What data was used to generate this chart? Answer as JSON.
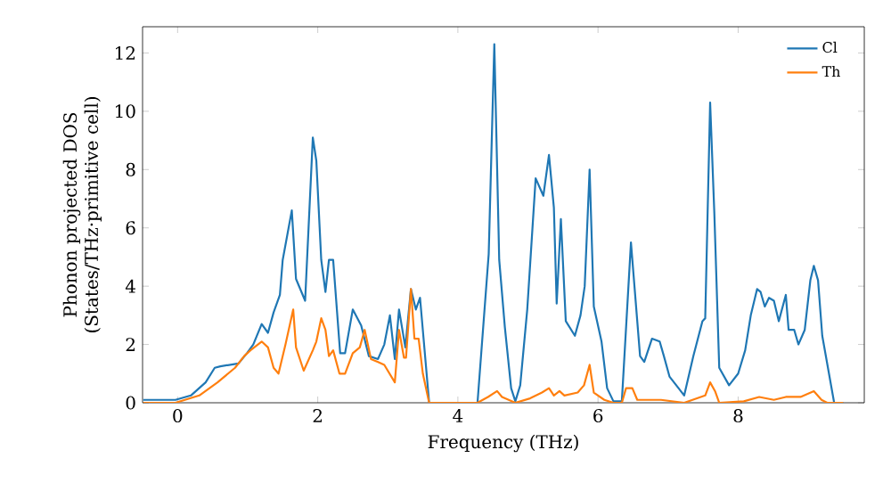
{
  "chart_data": {
    "type": "line",
    "xlabel": "Frequency (THz)",
    "ylabel": "Phonon projected DOS (States/THz·primitive cell)",
    "xlim": [
      -0.5,
      9.8
    ],
    "ylim": [
      0,
      12.9
    ],
    "xticks": [
      0,
      2,
      4,
      6,
      8
    ],
    "yticks": [
      0,
      2,
      4,
      6,
      8,
      10,
      12
    ],
    "legend": "top right",
    "grid": false,
    "series": [
      {
        "name": "Cl",
        "color": "#1f77b4",
        "x": [
          -0.49,
          -0.03,
          0.19,
          0.4,
          0.53,
          0.61,
          0.87,
          0.99,
          1.08,
          1.2,
          1.29,
          1.37,
          1.46,
          1.5,
          1.63,
          1.69,
          1.82,
          1.93,
          1.98,
          2.05,
          2.11,
          2.16,
          2.22,
          2.32,
          2.39,
          2.5,
          2.62,
          2.73,
          2.86,
          2.95,
          3.03,
          3.1,
          3.16,
          3.25,
          3.33,
          3.4,
          3.46,
          3.59,
          4.28,
          4.44,
          4.52,
          4.59,
          4.67,
          4.76,
          4.82,
          4.89,
          4.99,
          5.11,
          5.22,
          5.3,
          5.37,
          5.41,
          5.47,
          5.54,
          5.67,
          5.75,
          5.81,
          5.88,
          5.94,
          6.05,
          6.13,
          6.22,
          6.34,
          6.47,
          6.6,
          6.66,
          6.77,
          6.88,
          6.94,
          7.02,
          7.23,
          7.36,
          7.49,
          7.53,
          7.6,
          7.66,
          7.73,
          7.87,
          8.0,
          8.1,
          8.18,
          8.27,
          8.32,
          8.38,
          8.44,
          8.51,
          8.58,
          8.68,
          8.72,
          8.8,
          8.86,
          8.95,
          9.03,
          9.08,
          9.14,
          9.2,
          9.37,
          9.5
        ],
        "values": [
          0.1,
          0.1,
          0.25,
          0.7,
          1.2,
          1.25,
          1.35,
          1.7,
          2.0,
          2.7,
          2.4,
          3.1,
          3.7,
          4.9,
          6.6,
          4.25,
          3.5,
          9.1,
          8.3,
          4.9,
          3.8,
          4.9,
          4.9,
          1.7,
          1.7,
          3.2,
          2.65,
          1.6,
          1.5,
          2.0,
          3.0,
          1.5,
          3.2,
          1.9,
          3.9,
          3.2,
          3.6,
          0,
          0,
          5.1,
          12.3,
          4.9,
          2.6,
          0.5,
          0.05,
          0.6,
          3.2,
          7.7,
          7.1,
          8.5,
          6.7,
          3.4,
          6.3,
          2.8,
          2.3,
          3.0,
          4.0,
          8.0,
          3.3,
          2.1,
          0.5,
          0.05,
          0.05,
          5.5,
          1.6,
          1.4,
          2.2,
          2.1,
          1.6,
          0.9,
          0.25,
          1.6,
          2.8,
          2.9,
          10.3,
          6.5,
          1.2,
          0.6,
          1.0,
          1.8,
          3.0,
          3.9,
          3.8,
          3.3,
          3.6,
          3.5,
          2.8,
          3.7,
          2.5,
          2.5,
          2.0,
          2.5,
          4.2,
          4.7,
          4.2,
          2.3,
          0,
          0
        ]
      },
      {
        "name": "Th",
        "color": "#ff7f0e",
        "x": [
          -0.49,
          -0.03,
          0.31,
          0.57,
          0.82,
          0.95,
          1.04,
          1.2,
          1.29,
          1.37,
          1.44,
          1.54,
          1.65,
          1.69,
          1.8,
          1.93,
          1.98,
          2.05,
          2.11,
          2.16,
          2.22,
          2.31,
          2.39,
          2.5,
          2.6,
          2.67,
          2.76,
          2.86,
          2.95,
          3.1,
          3.16,
          3.23,
          3.26,
          3.33,
          3.38,
          3.44,
          3.5,
          3.59,
          4.28,
          4.43,
          4.56,
          4.63,
          4.82,
          5.03,
          5.2,
          5.3,
          5.37,
          5.45,
          5.52,
          5.71,
          5.8,
          5.88,
          5.94,
          6.09,
          6.22,
          6.34,
          6.4,
          6.49,
          6.56,
          6.9,
          7.23,
          7.53,
          7.6,
          7.67,
          7.73,
          8.08,
          8.3,
          8.51,
          8.68,
          8.89,
          9.08,
          9.19,
          9.27,
          9.5
        ],
        "values": [
          0,
          0,
          0.25,
          0.7,
          1.2,
          1.6,
          1.8,
          2.1,
          1.9,
          1.2,
          1.0,
          2.0,
          3.2,
          1.9,
          1.1,
          1.8,
          2.1,
          2.9,
          2.5,
          1.6,
          1.8,
          1.0,
          1.0,
          1.7,
          1.9,
          2.5,
          1.5,
          1.4,
          1.3,
          0.7,
          2.5,
          1.55,
          1.55,
          3.9,
          2.2,
          2.2,
          1.0,
          0,
          0,
          0.2,
          0.4,
          0.2,
          0,
          0.15,
          0.35,
          0.5,
          0.25,
          0.4,
          0.25,
          0.35,
          0.6,
          1.3,
          0.35,
          0.1,
          0,
          0,
          0.5,
          0.5,
          0.1,
          0.1,
          0,
          0.25,
          0.7,
          0.4,
          0,
          0.05,
          0.2,
          0.1,
          0.2,
          0.2,
          0.4,
          0.1,
          0,
          0
        ]
      }
    ]
  }
}
